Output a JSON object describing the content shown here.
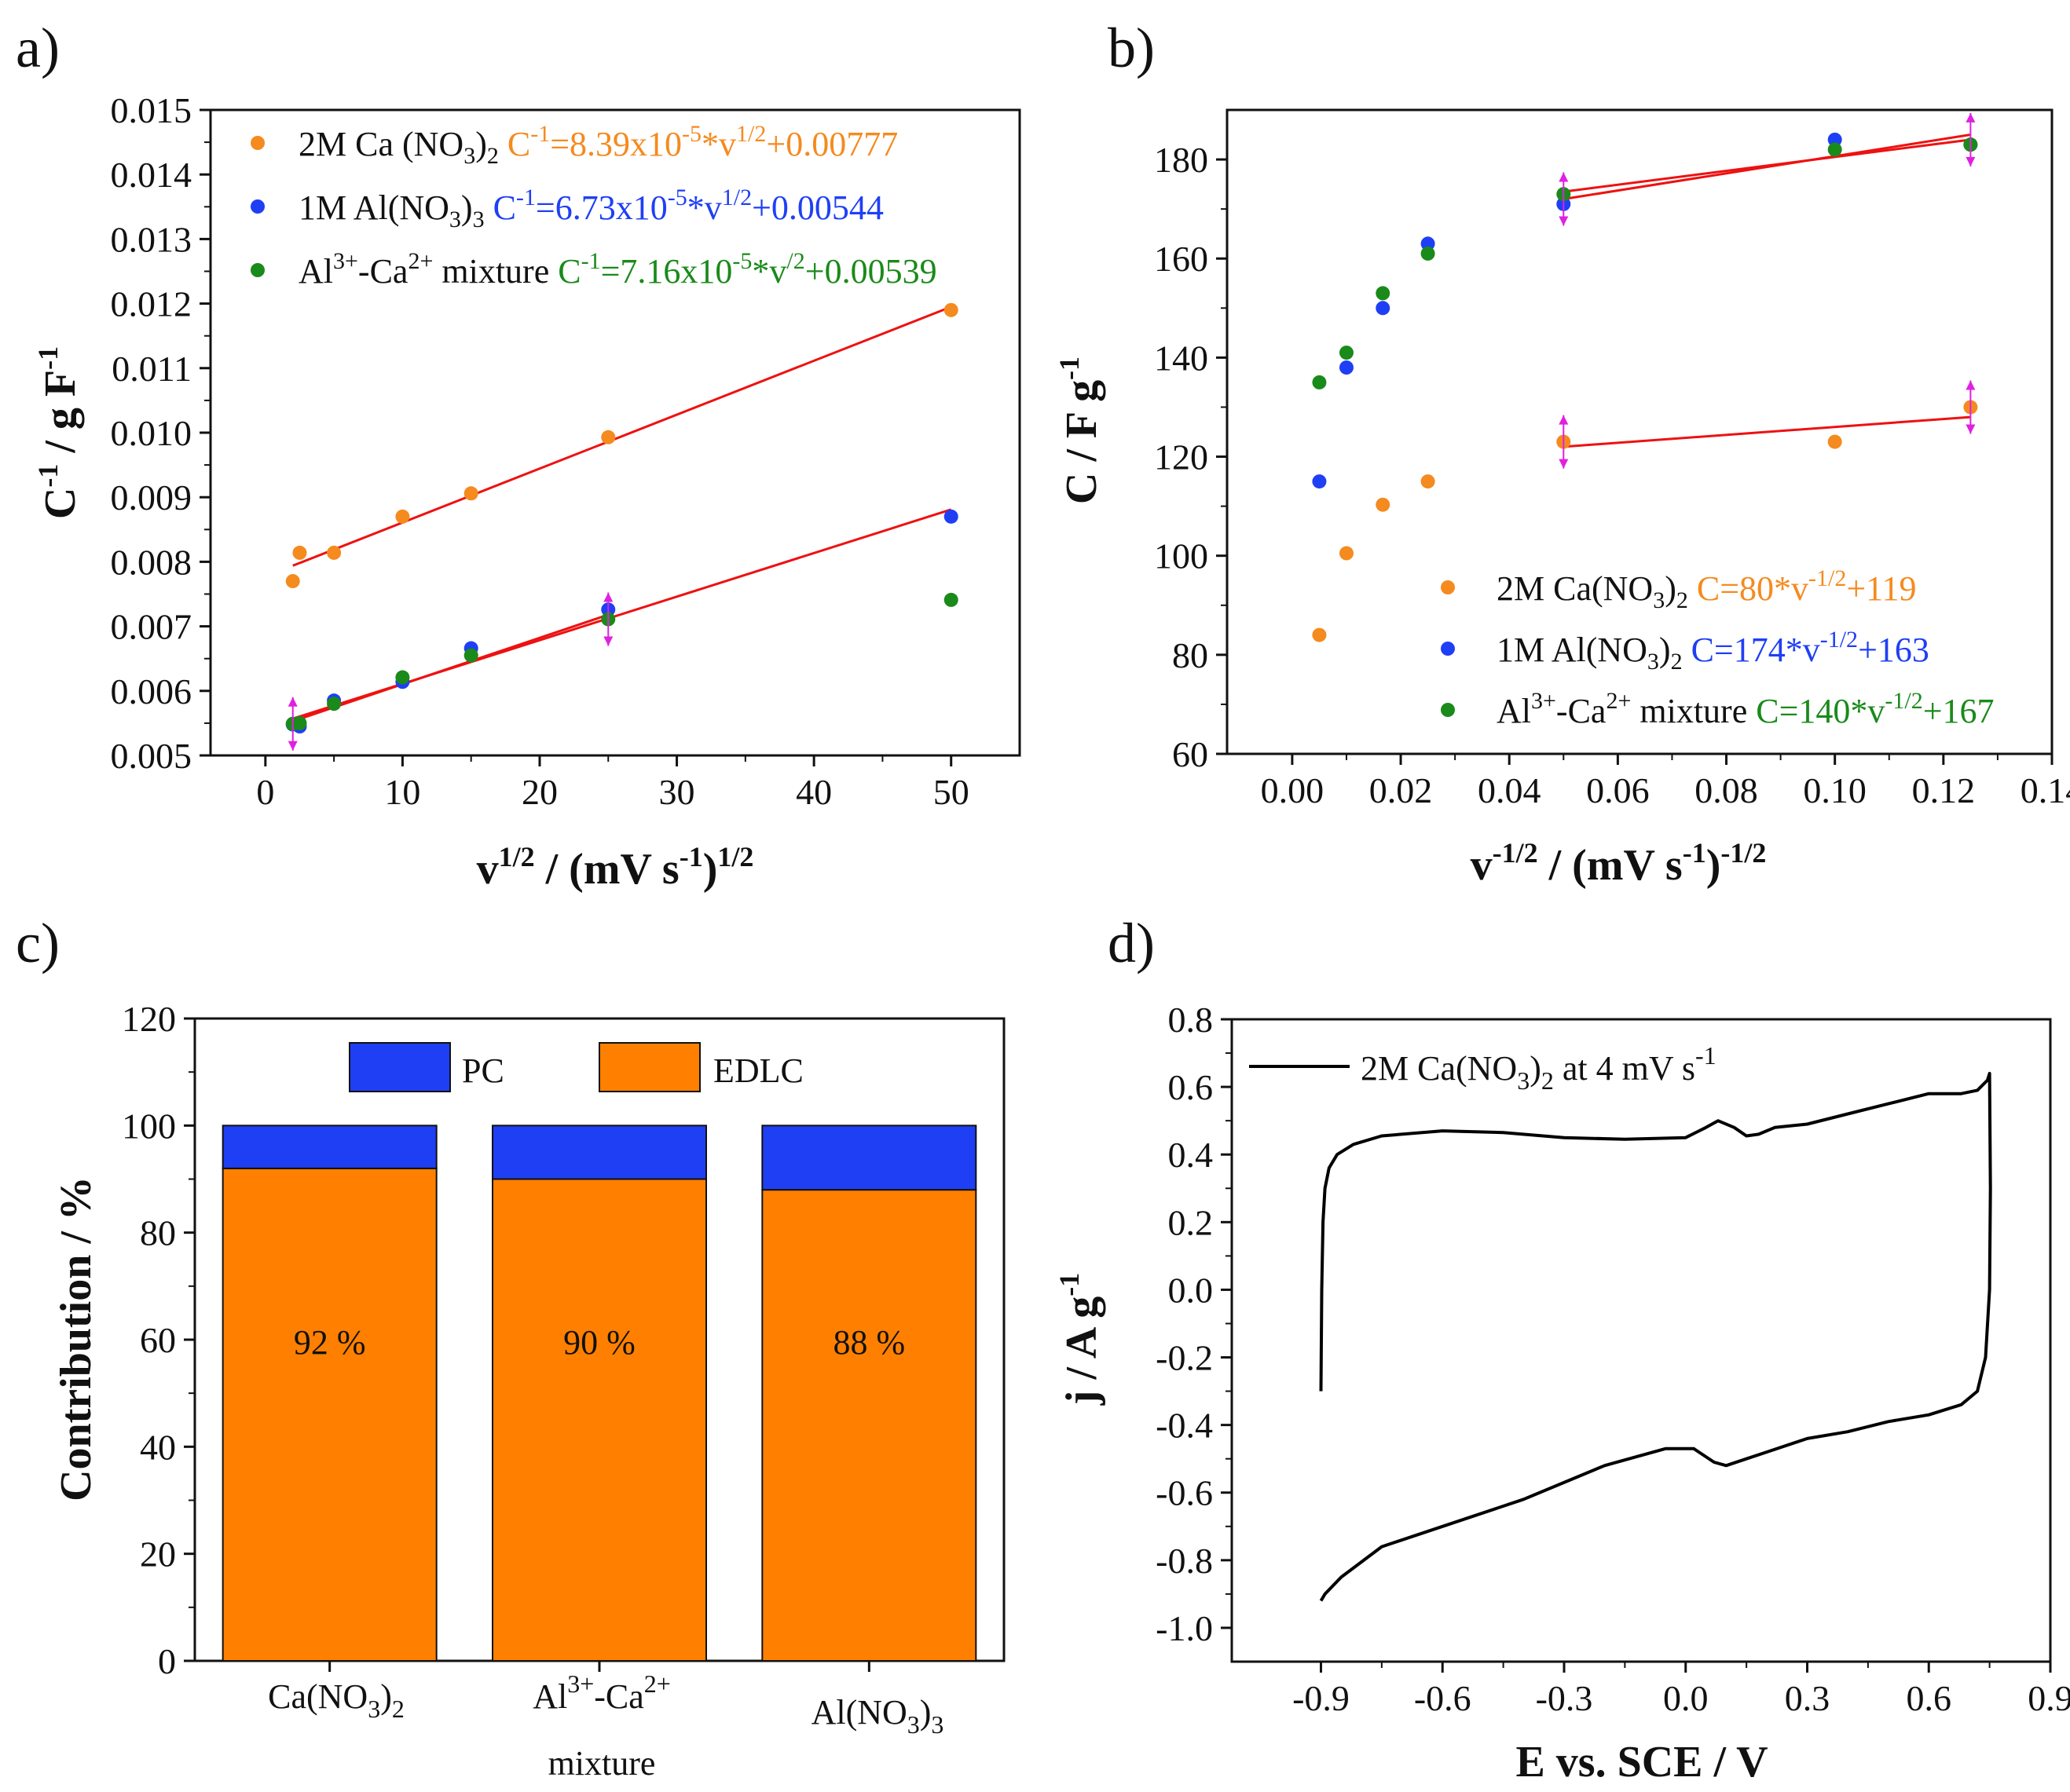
{
  "chart_data": [
    {
      "id": "a",
      "type": "scatter",
      "panel_label": "a)",
      "xlabel": "v1/2 / (mV s-1)1/2",
      "ylabel": "C-1 / g F-1",
      "xlim": [
        -4,
        55
      ],
      "ylim": [
        0.005,
        0.015
      ],
      "xticks": [
        0,
        10,
        20,
        30,
        40,
        50
      ],
      "yticks": [
        "0.005",
        "0.006",
        "0.007",
        "0.008",
        "0.009",
        "0.010",
        "0.011",
        "0.012",
        "0.013",
        "0.014",
        "0.015"
      ],
      "series": [
        {
          "name": "2M Ca (NO3)2",
          "color": "#f58a1f",
          "equation": "C-1=8.39x10-5*v1/2+0.00777",
          "x": [
            2,
            2.5,
            5,
            10,
            15,
            25,
            50
          ],
          "y": [
            0.0077,
            0.00814,
            0.00814,
            0.0087,
            0.00906,
            0.00993,
            0.0119
          ]
        },
        {
          "name": "1M Al(NO3)3",
          "color": "#1f3ff5",
          "equation": "C-1=6.73x10-5*v1/2+0.00544",
          "x": [
            2,
            2.5,
            5,
            10,
            15,
            25,
            50
          ],
          "y": [
            0.00548,
            0.00545,
            0.00585,
            0.00614,
            0.00666,
            0.00726,
            0.0087
          ]
        },
        {
          "name": "Al3+-Ca2+ mixture",
          "color": "#1a8a1a",
          "equation": "C-1=7.16x10-5*v/2+0.00539",
          "x": [
            2,
            2.5,
            5,
            10,
            15,
            25,
            50
          ],
          "y": [
            0.00549,
            0.0055,
            0.0058,
            0.00621,
            0.00655,
            0.00711,
            0.00741
          ]
        }
      ],
      "fits": [
        {
          "x": [
            2,
            50
          ],
          "y": [
            0.00794,
            0.01195
          ]
        },
        {
          "x": [
            2,
            50
          ],
          "y": [
            0.00557,
            0.00881
          ]
        },
        {
          "x": [
            2,
            25
          ],
          "y": [
            0.00553,
            0.00718
          ]
        }
      ]
    },
    {
      "id": "b",
      "type": "scatter",
      "panel_label": "b)",
      "xlabel": "v-1/2 / (mV s-1)-1/2",
      "ylabel": "C / F g-1",
      "xlim": [
        -0.012,
        0.14
      ],
      "ylim": [
        60,
        190
      ],
      "xticks": [
        "0.00",
        "0.02",
        "0.04",
        "0.06",
        "0.08",
        "0.10",
        "0.12",
        "0.14"
      ],
      "yticks": [
        60,
        80,
        100,
        120,
        140,
        160,
        180
      ],
      "series": [
        {
          "name": "2M Ca(NO3)2",
          "color": "#f58a1f",
          "equation": "C=80*v-1/2+119",
          "x": [
            0.005,
            0.01,
            0.0167,
            0.025,
            0.05,
            0.1,
            0.125
          ],
          "y": [
            84,
            100.5,
            110.3,
            115,
            123,
            123,
            130
          ]
        },
        {
          "name": "1M Al(NO3)2",
          "color": "#1f3ff5",
          "equation": "C=174*v-1/2+163",
          "x": [
            0.005,
            0.01,
            0.0167,
            0.025,
            0.05,
            0.1,
            0.125
          ],
          "y": [
            115,
            138,
            150,
            163,
            171,
            184,
            183
          ]
        },
        {
          "name": "Al3+-Ca2+ mixture",
          "color": "#1a8a1a",
          "equation": "C=140*v-1/2+167",
          "x": [
            0.005,
            0.01,
            0.0167,
            0.025,
            0.05,
            0.1,
            0.125
          ],
          "y": [
            135,
            141,
            153,
            161,
            173,
            182,
            183
          ]
        }
      ],
      "fits": [
        {
          "x": [
            0.05,
            0.125
          ],
          "y": [
            122,
            128
          ]
        },
        {
          "x": [
            0.05,
            0.125
          ],
          "y": [
            172,
            185
          ]
        },
        {
          "x": [
            0.05,
            0.125
          ],
          "y": [
            173.5,
            184
          ]
        }
      ]
    },
    {
      "id": "c",
      "type": "bar",
      "panel_label": "c)",
      "ylabel": "Contribution / %",
      "ylim": [
        0,
        120
      ],
      "yticks": [
        0,
        20,
        40,
        60,
        80,
        100,
        120
      ],
      "categories": [
        "Ca(NO3)2",
        "Al3+-Ca2+ mixture",
        "Al(NO3)3"
      ],
      "series": [
        {
          "name": "EDLC",
          "color": "#ff8000",
          "values": [
            92,
            90,
            88
          ]
        },
        {
          "name": "PC",
          "color": "#1f3ff5",
          "values": [
            8,
            10,
            12
          ]
        }
      ],
      "bar_labels": [
        "92 %",
        "90 %",
        "88 %"
      ]
    },
    {
      "id": "d",
      "type": "line",
      "panel_label": "d)",
      "xlabel": "E vs. SCE / V",
      "ylabel": "j / A g-1",
      "xlim": [
        -1.12,
        0.9
      ],
      "ylim": [
        -1.1,
        0.8
      ],
      "xticks": [
        "-0.9",
        "-0.6",
        "-0.3",
        "0.0",
        "0.3",
        "0.6",
        "0.9"
      ],
      "yticks": [
        "-1.0",
        "-0.8",
        "-0.6",
        "-0.4",
        "-0.2",
        "0.0",
        "0.2",
        "0.4",
        "0.6",
        "0.8"
      ],
      "legend": "2M Ca(NO3)2 at 4 mV s-1",
      "series": [
        {
          "name": "2M Ca(NO3)2 at 4 mV s-1",
          "color": "#000000",
          "x": [
            -0.9,
            -0.898,
            -0.895,
            -0.89,
            -0.88,
            -0.86,
            -0.82,
            -0.75,
            -0.6,
            -0.45,
            -0.3,
            -0.15,
            0.0,
            0.05,
            0.08,
            0.12,
            0.15,
            0.18,
            0.22,
            0.3,
            0.4,
            0.5,
            0.6,
            0.68,
            0.72,
            0.745,
            0.75,
            0.752,
            0.75,
            0.74,
            0.72,
            0.68,
            0.6,
            0.5,
            0.4,
            0.3,
            0.2,
            0.15,
            0.1,
            0.07,
            0.02,
            -0.05,
            -0.2,
            -0.4,
            -0.6,
            -0.75,
            -0.85,
            -0.89,
            -0.9
          ],
          "y": [
            -0.3,
            0.0,
            0.2,
            0.3,
            0.36,
            0.4,
            0.43,
            0.455,
            0.47,
            0.465,
            0.45,
            0.445,
            0.45,
            0.48,
            0.5,
            0.48,
            0.455,
            0.46,
            0.48,
            0.49,
            0.52,
            0.55,
            0.58,
            0.58,
            0.59,
            0.62,
            0.64,
            0.3,
            0.0,
            -0.2,
            -0.3,
            -0.34,
            -0.37,
            -0.39,
            -0.42,
            -0.44,
            -0.48,
            -0.5,
            -0.52,
            -0.51,
            -0.47,
            -0.47,
            -0.52,
            -0.62,
            -0.7,
            -0.76,
            -0.85,
            -0.9,
            -0.92
          ]
        }
      ]
    }
  ]
}
